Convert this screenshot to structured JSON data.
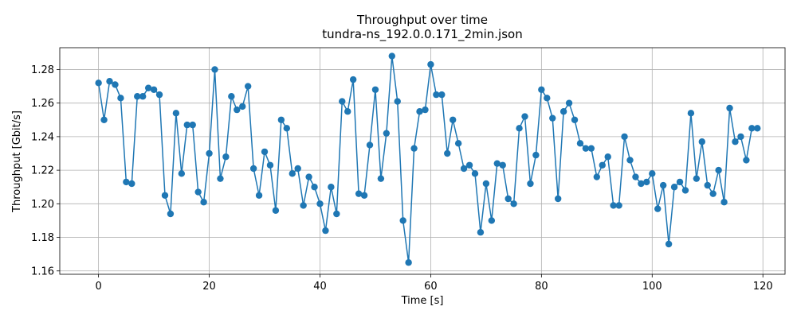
{
  "chart_data": {
    "type": "line",
    "title": "Throughput over time",
    "subtitle": "tundra-ns_192.0.0.171_2min.json",
    "xlabel": "Time [s]",
    "ylabel": "Throughput [Gbit/s]",
    "xlim": [
      -7,
      124
    ],
    "ylim": [
      1.158,
      1.293
    ],
    "xticks": [
      0,
      20,
      40,
      60,
      80,
      100,
      120
    ],
    "yticks": [
      1.16,
      1.18,
      1.2,
      1.22,
      1.24,
      1.26,
      1.28
    ],
    "grid": true,
    "colors": {
      "series": "#1f77b4",
      "grid": "#b0b0b0"
    },
    "series": [
      {
        "marker": "circle",
        "x": [
          0,
          1,
          2,
          3,
          4,
          5,
          6,
          7,
          8,
          9,
          10,
          11,
          12,
          13,
          14,
          15,
          16,
          17,
          18,
          19,
          20,
          21,
          22,
          23,
          24,
          25,
          26,
          27,
          28,
          29,
          30,
          31,
          32,
          33,
          34,
          35,
          36,
          37,
          38,
          39,
          40,
          41,
          42,
          43,
          44,
          45,
          46,
          47,
          48,
          49,
          50,
          51,
          52,
          53,
          54,
          55,
          56,
          57,
          58,
          59,
          60,
          61,
          62,
          63,
          64,
          65,
          66,
          67,
          68,
          69,
          70,
          71,
          72,
          73,
          74,
          75,
          76,
          77,
          78,
          79,
          80,
          81,
          82,
          83,
          84,
          85,
          86,
          87,
          88,
          89,
          90,
          91,
          92,
          93,
          94,
          95,
          96,
          97,
          98,
          99,
          100,
          101,
          102,
          103,
          104,
          105,
          106,
          107,
          108,
          109,
          110,
          111,
          112,
          113,
          114,
          115,
          116,
          117,
          118,
          119
        ],
        "y": [
          1.272,
          1.25,
          1.273,
          1.271,
          1.263,
          1.213,
          1.212,
          1.264,
          1.264,
          1.269,
          1.268,
          1.265,
          1.205,
          1.194,
          1.254,
          1.218,
          1.247,
          1.247,
          1.207,
          1.201,
          1.23,
          1.28,
          1.215,
          1.228,
          1.264,
          1.256,
          1.258,
          1.27,
          1.221,
          1.205,
          1.231,
          1.223,
          1.196,
          1.25,
          1.245,
          1.218,
          1.221,
          1.199,
          1.216,
          1.21,
          1.2,
          1.184,
          1.21,
          1.194,
          1.261,
          1.255,
          1.274,
          1.206,
          1.205,
          1.235,
          1.268,
          1.215,
          1.242,
          1.288,
          1.261,
          1.19,
          1.165,
          1.233,
          1.255,
          1.256,
          1.283,
          1.265,
          1.265,
          1.23,
          1.25,
          1.236,
          1.221,
          1.223,
          1.218,
          1.183,
          1.212,
          1.19,
          1.224,
          1.223,
          1.203,
          1.2,
          1.245,
          1.252,
          1.212,
          1.229,
          1.268,
          1.263,
          1.251,
          1.203,
          1.255,
          1.26,
          1.25,
          1.236,
          1.233,
          1.233,
          1.216,
          1.223,
          1.228,
          1.199,
          1.199,
          1.24,
          1.226,
          1.216,
          1.212,
          1.213,
          1.218,
          1.197,
          1.211,
          1.176,
          1.21,
          1.213,
          1.208,
          1.254,
          1.215,
          1.237,
          1.211,
          1.206,
          1.22,
          1.201,
          1.257,
          1.237,
          1.24,
          1.226,
          1.245,
          1.245
        ]
      }
    ]
  }
}
